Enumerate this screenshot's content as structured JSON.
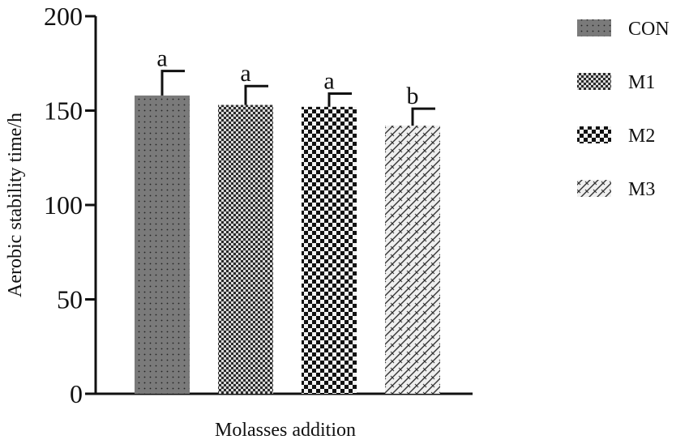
{
  "chart_data": {
    "type": "bar",
    "title": "",
    "xlabel": "Molasses addition",
    "ylabel": "Aerobic stability time/h",
    "ylim": [
      0,
      200
    ],
    "yticks": [
      0,
      50,
      100,
      150,
      200
    ],
    "categories": [
      "CON",
      "M1",
      "M2",
      "M3"
    ],
    "values": [
      158,
      153,
      152,
      142
    ],
    "errors": [
      13,
      10,
      7,
      9
    ],
    "significance": [
      "a",
      "a",
      "a",
      "b"
    ],
    "patterns": [
      "dots",
      "fine-checker",
      "checker",
      "diagonal-weave"
    ],
    "legend": {
      "placement": "right",
      "entries": [
        "CON",
        "M1",
        "M2",
        "M3"
      ]
    },
    "grid": false
  }
}
